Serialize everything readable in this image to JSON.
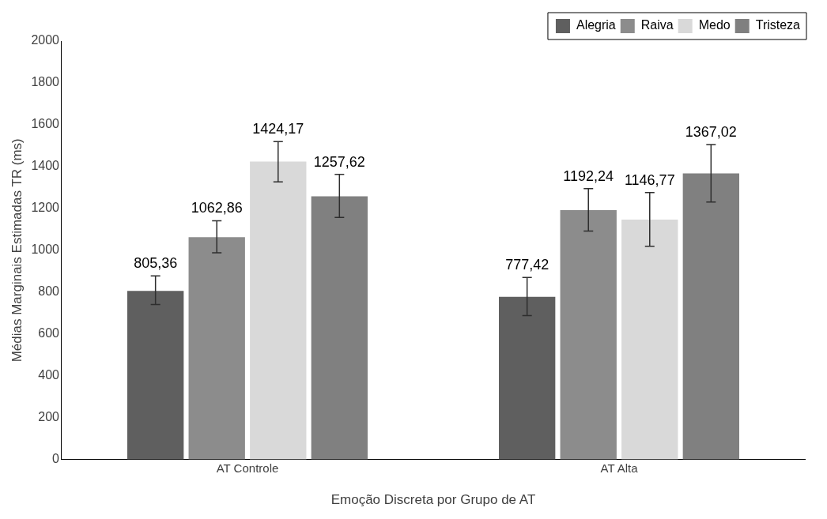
{
  "chart_data": {
    "type": "bar",
    "xlabel": "Emoção Discreta por Grupo de AT",
    "ylabel": "Médias Marginais Estimadas TR (ms)",
    "categories": [
      "AT Controle",
      "AT Alta"
    ],
    "series": [
      {
        "name": "Alegria",
        "color": "#5f5f5f",
        "values": [
          805.36,
          777.42
        ],
        "value_labels": [
          "805,36",
          "777,42"
        ],
        "errors": [
          [
            741,
            877
          ],
          [
            688,
            870
          ]
        ]
      },
      {
        "name": "Raiva",
        "color": "#8c8c8c",
        "values": [
          1062.86,
          1192.24
        ],
        "value_labels": [
          "1062,86",
          "1192,24"
        ],
        "errors": [
          [
            988,
            1141
          ],
          [
            1092,
            1295
          ]
        ]
      },
      {
        "name": "Medo",
        "color": "#d9d9d9",
        "values": [
          1424.17,
          1146.77
        ],
        "value_labels": [
          "1424,17",
          "1146,77"
        ],
        "errors": [
          [
            1327,
            1519
          ],
          [
            1019,
            1276
          ]
        ]
      },
      {
        "name": "Tristeza",
        "color": "#808080",
        "values": [
          1257.62,
          1367.02
        ],
        "value_labels": [
          "1257,62",
          "1367,02"
        ],
        "errors": [
          [
            1157,
            1363
          ],
          [
            1231,
            1505
          ]
        ]
      }
    ],
    "ylim": [
      0,
      2000
    ],
    "yticks": [
      0,
      200,
      400,
      600,
      800,
      1000,
      1200,
      1400,
      1600,
      1800,
      2000
    ],
    "grid": false,
    "legend": "top right"
  }
}
